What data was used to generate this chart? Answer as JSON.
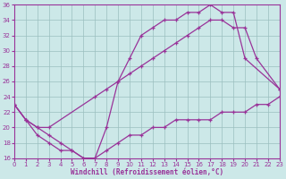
{
  "xlabel": "Windchill (Refroidissement éolien,°C)",
  "background_color": "#cce8e8",
  "line_color": "#993399",
  "xlim": [
    0,
    23
  ],
  "ylim": [
    16,
    36
  ],
  "yticks": [
    16,
    18,
    20,
    22,
    24,
    26,
    28,
    30,
    32,
    34,
    36
  ],
  "xticks": [
    0,
    1,
    2,
    3,
    4,
    5,
    6,
    7,
    8,
    9,
    10,
    11,
    12,
    13,
    14,
    15,
    16,
    17,
    18,
    19,
    20,
    21,
    22,
    23
  ],
  "line1_x": [
    0,
    1,
    2,
    3,
    4,
    5,
    6,
    7,
    8,
    9,
    10,
    11,
    12,
    13,
    14,
    15,
    16,
    17,
    18,
    19,
    20,
    23
  ],
  "line1_y": [
    23,
    21,
    19,
    18,
    17,
    17,
    16,
    16,
    20,
    26,
    29,
    32,
    33,
    34,
    34,
    35,
    35,
    36,
    35,
    35,
    29,
    25
  ],
  "line2_x": [
    0,
    1,
    2,
    3,
    7,
    8,
    9,
    10,
    11,
    12,
    13,
    14,
    15,
    16,
    17,
    18,
    19,
    20,
    21,
    23
  ],
  "line2_y": [
    23,
    21,
    20,
    20,
    24,
    25,
    26,
    27,
    28,
    29,
    30,
    31,
    32,
    33,
    34,
    34,
    33,
    33,
    29,
    25
  ],
  "line3_x": [
    0,
    1,
    2,
    3,
    4,
    5,
    6,
    7,
    8,
    9,
    10,
    11,
    12,
    13,
    14,
    15,
    16,
    17,
    18,
    19,
    20,
    21,
    22,
    23
  ],
  "line3_y": [
    23,
    21,
    20,
    19,
    18,
    17,
    16,
    16,
    17,
    18,
    19,
    19,
    20,
    20,
    21,
    21,
    21,
    21,
    22,
    22,
    22,
    23,
    23,
    24
  ]
}
